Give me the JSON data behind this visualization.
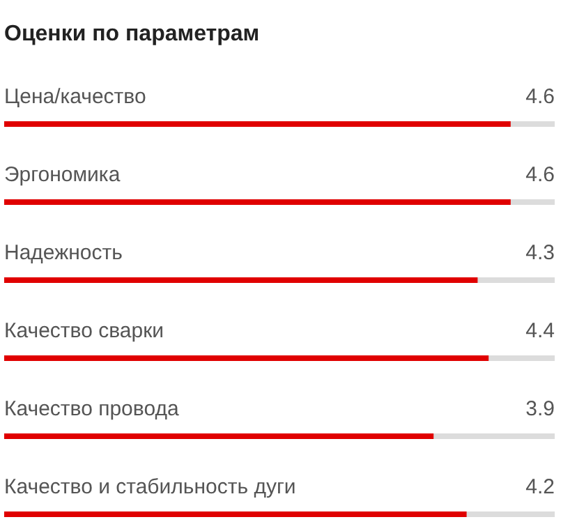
{
  "chart_data": {
    "type": "bar",
    "orientation": "horizontal",
    "title": "Оценки по параметрам",
    "categories": [
      "Цена/качество",
      "Эргономика",
      "Надежность",
      "Качество сварки",
      "Качество провода",
      "Качество и стабильность дуги"
    ],
    "values": [
      4.6,
      4.6,
      4.3,
      4.4,
      3.9,
      4.2
    ],
    "color": "#e00000",
    "xlim": [
      0,
      5
    ],
    "data_labels": true
  }
}
